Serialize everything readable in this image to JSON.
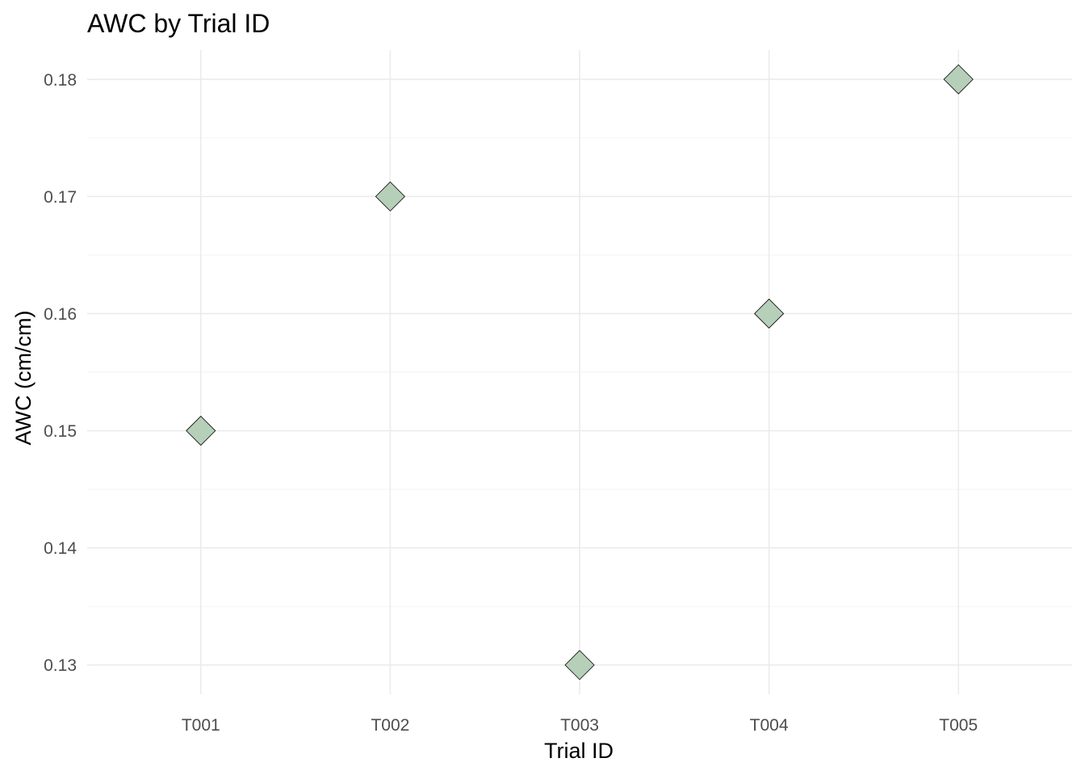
{
  "chart_data": {
    "type": "scatter",
    "title": "AWC by Trial ID",
    "xlabel": "Trial ID",
    "ylabel": "AWC (cm/cm)",
    "categories": [
      "T001",
      "T002",
      "T003",
      "T004",
      "T005"
    ],
    "values": [
      0.15,
      0.17,
      0.13,
      0.16,
      0.18
    ],
    "ylim": [
      0.1275,
      0.1825
    ],
    "yticks": [
      0.13,
      0.14,
      0.15,
      0.16,
      0.17,
      0.18
    ],
    "ytick_labels": [
      "0.13",
      "0.14",
      "0.15",
      "0.16",
      "0.17",
      "0.18"
    ],
    "marker": "diamond",
    "marker_color": "#b5cfb8",
    "marker_edge_color": "#000000",
    "grid": true,
    "legend": "none"
  }
}
